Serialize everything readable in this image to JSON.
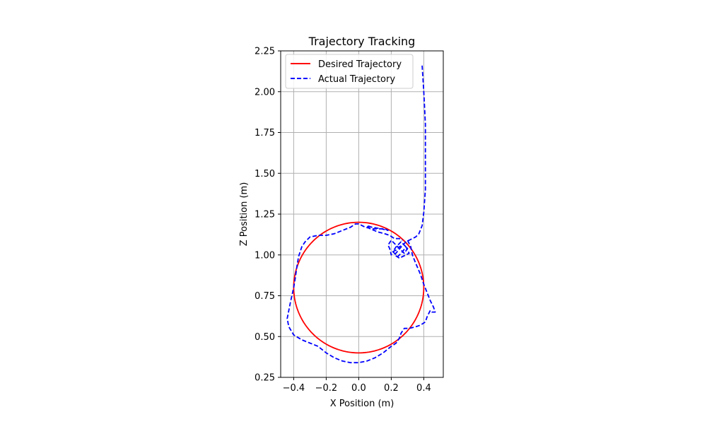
{
  "chart_data": {
    "type": "line",
    "title": "Trajectory Tracking",
    "xlabel": "X Position (m)",
    "ylabel": "Z Position (m)",
    "xlim": [
      -0.48,
      0.52
    ],
    "ylim": [
      0.25,
      2.25
    ],
    "xticks": [
      -0.4,
      -0.2,
      0.0,
      0.2,
      0.4
    ],
    "xtick_labels": [
      "−0.4",
      "−0.2",
      "0.0",
      "0.2",
      "0.4"
    ],
    "yticks": [
      0.25,
      0.5,
      0.75,
      1.0,
      1.25,
      1.5,
      1.75,
      2.0,
      2.25
    ],
    "ytick_labels": [
      "0.25",
      "0.50",
      "0.75",
      "1.00",
      "1.25",
      "1.50",
      "1.75",
      "2.00",
      "2.25"
    ],
    "grid": true,
    "legend_position": "upper-left",
    "series": [
      {
        "name": "Desired Trajectory",
        "color": "#ff0000",
        "style": "solid",
        "shape": "circle",
        "center": [
          0.0,
          0.8
        ],
        "radius": 0.4
      },
      {
        "name": "Actual Trajectory",
        "color": "#0000ff",
        "style": "dashed",
        "x": [
          0.39,
          0.4,
          0.41,
          0.41,
          0.41,
          0.4,
          0.39,
          0.37,
          0.35,
          0.33,
          0.31,
          0.29,
          0.28,
          0.27,
          0.25,
          0.23,
          0.21,
          0.2,
          0.19,
          0.18,
          0.2,
          0.22,
          0.24,
          0.26,
          0.28,
          0.3,
          0.28,
          0.26,
          0.23,
          0.21,
          0.24,
          0.27,
          0.29,
          0.31,
          0.25,
          0.22,
          0.27,
          0.3,
          0.32,
          0.33,
          0.35,
          0.38,
          0.4,
          0.42,
          0.44,
          0.46,
          0.47,
          0.45,
          0.44,
          0.42,
          0.41,
          0.38,
          0.35,
          0.31,
          0.28,
          0.26,
          0.25,
          0.23,
          0.2,
          0.15,
          0.1,
          0.05,
          0.0,
          -0.05,
          -0.1,
          -0.15,
          -0.2,
          -0.25,
          -0.3,
          -0.35,
          -0.4,
          -0.43,
          -0.44,
          -0.43,
          -0.42,
          -0.4,
          -0.39,
          -0.38,
          -0.37,
          -0.35,
          -0.33,
          -0.31,
          -0.3,
          -0.25,
          -0.2,
          -0.15,
          -0.1,
          -0.05,
          -0.02,
          0.0,
          0.04,
          0.08,
          0.12,
          0.16,
          0.18,
          0.14,
          0.08,
          0.05,
          0.07,
          0.12,
          0.16,
          0.19,
          0.22,
          0.25,
          0.27
        ],
        "y": [
          2.16,
          2.0,
          1.8,
          1.6,
          1.4,
          1.26,
          1.18,
          1.13,
          1.11,
          1.1,
          1.09,
          1.08,
          1.07,
          1.06,
          1.05,
          1.03,
          1.02,
          1.0,
          1.04,
          1.06,
          1.09,
          1.07,
          1.05,
          1.03,
          1.01,
          1.04,
          1.06,
          1.08,
          1.05,
          1.02,
          0.99,
          1.02,
          1.05,
          1.01,
          0.98,
          1.0,
          1.06,
          1.09,
          1.05,
          1.0,
          0.95,
          0.88,
          0.82,
          0.77,
          0.72,
          0.68,
          0.65,
          0.65,
          0.66,
          0.62,
          0.59,
          0.57,
          0.56,
          0.55,
          0.55,
          0.52,
          0.49,
          0.46,
          0.44,
          0.4,
          0.37,
          0.35,
          0.34,
          0.34,
          0.35,
          0.37,
          0.4,
          0.44,
          0.46,
          0.48,
          0.51,
          0.56,
          0.61,
          0.66,
          0.71,
          0.8,
          0.86,
          0.93,
          0.99,
          1.05,
          1.08,
          1.1,
          1.11,
          1.12,
          1.12,
          1.13,
          1.15,
          1.17,
          1.19,
          1.19,
          1.17,
          1.16,
          1.16,
          1.16,
          1.15,
          1.16,
          1.17,
          1.18,
          1.16,
          1.14,
          1.13,
          1.12,
          1.1,
          1.1,
          1.09
        ]
      }
    ]
  }
}
